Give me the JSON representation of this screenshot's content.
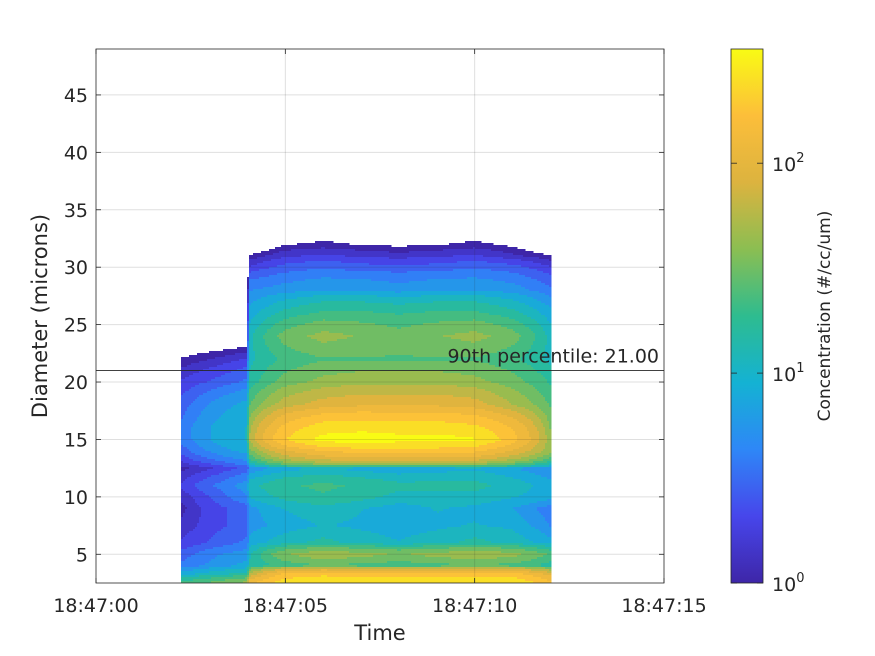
{
  "chart_data": {
    "type": "heatmap",
    "subtype": "filled-contour",
    "xlabel": "Time",
    "ylabel": "Diameter (microns)",
    "x_ticks": [
      "18:47:00",
      "18:47:05",
      "18:47:10",
      "18:47:15"
    ],
    "x_tick_seconds": [
      0,
      5,
      10,
      15
    ],
    "xlim_seconds": [
      0,
      15
    ],
    "y_ticks": [
      5,
      10,
      15,
      20,
      25,
      30,
      35,
      40,
      45
    ],
    "ylim": [
      2.5,
      49
    ],
    "grid": true,
    "colorbar": {
      "label": "Concentration (#/cc/um)",
      "scale": "log",
      "range": [
        1,
        350
      ],
      "ticks": [
        {
          "value": 1,
          "base": "10",
          "exp": "0"
        },
        {
          "value": 10,
          "base": "10",
          "exp": "1"
        },
        {
          "value": 100,
          "base": "10",
          "exp": "2"
        }
      ],
      "colormap": [
        "#3e26a8",
        "#4746eb",
        "#2e87f7",
        "#14b2d3",
        "#2ebc8f",
        "#8bbe52",
        "#dcb33f",
        "#fcbe3a",
        "#f9fb14"
      ]
    },
    "annotation": {
      "text": "90th percentile: 21.00",
      "y": 21.0
    },
    "time_seconds": [
      2.25,
      3.25,
      4.0,
      4.05,
      5.0,
      6.0,
      7.0,
      8.0,
      9.0,
      10.0,
      11.0,
      11.99,
      12.0
    ],
    "diameter_microns": [
      2.5,
      3.3,
      4.0,
      5.0,
      6.0,
      7.5,
      9.0,
      10.0,
      11.0,
      12.5,
      14.0,
      15.0,
      16.0,
      18.0,
      20.0,
      22.0,
      24.0,
      26.0,
      28.0,
      30.0,
      31.0,
      32.0,
      34.0
    ],
    "concentration": [
      [
        20,
        30,
        40,
        120,
        220,
        260,
        240,
        240,
        240,
        240,
        240,
        150,
        0
      ],
      [
        8,
        12,
        15,
        50,
        140,
        160,
        150,
        150,
        150,
        150,
        150,
        80,
        0
      ],
      [
        4,
        6,
        8,
        15,
        20,
        25,
        22,
        20,
        22,
        25,
        22,
        15,
        0
      ],
      [
        3,
        5,
        6,
        12,
        35,
        45,
        40,
        35,
        40,
        45,
        40,
        25,
        0
      ],
      [
        2,
        3,
        4,
        8,
        12,
        15,
        12,
        10,
        12,
        15,
        12,
        8,
        0
      ],
      [
        1.5,
        2.5,
        3,
        6,
        8,
        10,
        9,
        8,
        9,
        10,
        9,
        5,
        0
      ],
      [
        1.2,
        2.5,
        3,
        6,
        10,
        12,
        10,
        8,
        10,
        9,
        7,
        4,
        0
      ],
      [
        1.5,
        3,
        5,
        10,
        15,
        18,
        15,
        12,
        12,
        12,
        10,
        8,
        0
      ],
      [
        2,
        4,
        6,
        12,
        18,
        20,
        18,
        15,
        15,
        15,
        12,
        8,
        0
      ],
      [
        1.2,
        2,
        3,
        5,
        8,
        10,
        8,
        7,
        8,
        9,
        7,
        5,
        0
      ],
      [
        3,
        6,
        8,
        30,
        90,
        130,
        150,
        150,
        150,
        140,
        90,
        40,
        0
      ],
      [
        4,
        8,
        10,
        50,
        180,
        280,
        300,
        280,
        280,
        260,
        150,
        40,
        0
      ],
      [
        4,
        8,
        10,
        45,
        150,
        220,
        230,
        220,
        220,
        200,
        130,
        35,
        0
      ],
      [
        3,
        6,
        8,
        25,
        60,
        80,
        90,
        90,
        90,
        80,
        50,
        25,
        0
      ],
      [
        2,
        3,
        4,
        15,
        30,
        40,
        45,
        45,
        45,
        40,
        30,
        18,
        0
      ],
      [
        1,
        1.5,
        2,
        12,
        20,
        25,
        25,
        25,
        25,
        25,
        20,
        12,
        0
      ],
      [
        0,
        0,
        0,
        12,
        30,
        40,
        35,
        30,
        35,
        40,
        30,
        12,
        0
      ],
      [
        0,
        0,
        0,
        8,
        15,
        20,
        20,
        18,
        20,
        20,
        15,
        8,
        0
      ],
      [
        0,
        0,
        0,
        5,
        6,
        7,
        7,
        6,
        7,
        7,
        6,
        4,
        0
      ],
      [
        0,
        0,
        0,
        2,
        3,
        3.5,
        3,
        3,
        3,
        3.5,
        3,
        2,
        0
      ],
      [
        0,
        0,
        0,
        1,
        1.8,
        2,
        1.8,
        1.6,
        1.8,
        2,
        1.5,
        1,
        0
      ],
      [
        0,
        0,
        0,
        0,
        0.9,
        1.1,
        0.9,
        0.8,
        0.9,
        1.1,
        0.8,
        0,
        0
      ],
      [
        0,
        0,
        0,
        0,
        0,
        0,
        0,
        0,
        0,
        0,
        0,
        0,
        0
      ]
    ]
  }
}
